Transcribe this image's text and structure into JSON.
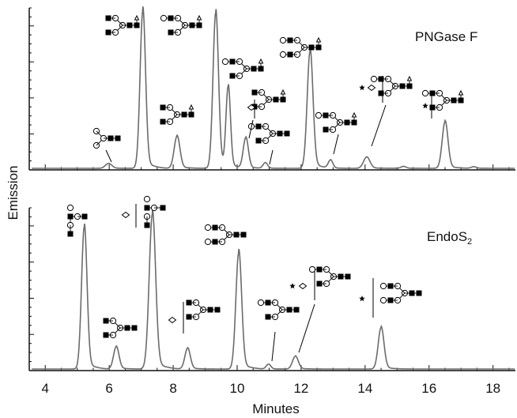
{
  "chart_data": {
    "type": "line",
    "xlabel": "Minutes",
    "ylabel": "Emission",
    "xlim": [
      3.5,
      18.7
    ],
    "x_ticks": [
      "4",
      "6",
      "8",
      "10",
      "12",
      "14",
      "16",
      "18"
    ],
    "grid": false,
    "panels": [
      {
        "label": "PNGase F",
        "label_sub": "",
        "ylim": [
          0,
          1.0
        ],
        "baseline": 0.02,
        "peaks": [
          {
            "time": 5.98,
            "height": 0.03,
            "width": 0.1
          },
          {
            "time": 7.05,
            "height": 0.98,
            "width": 0.085
          },
          {
            "time": 8.12,
            "height": 0.2,
            "width": 0.09
          },
          {
            "time": 9.33,
            "height": 0.97,
            "width": 0.085
          },
          {
            "time": 9.72,
            "height": 0.5,
            "width": 0.07
          },
          {
            "time": 10.27,
            "height": 0.19,
            "width": 0.08
          },
          {
            "time": 10.88,
            "height": 0.035,
            "width": 0.07
          },
          {
            "time": 12.28,
            "height": 0.73,
            "width": 0.09
          },
          {
            "time": 12.92,
            "height": 0.05,
            "width": 0.07
          },
          {
            "time": 14.05,
            "height": 0.07,
            "width": 0.1
          },
          {
            "time": 15.2,
            "height": 0.012,
            "width": 0.08
          },
          {
            "time": 16.5,
            "height": 0.29,
            "width": 0.09
          },
          {
            "time": 17.4,
            "height": 0.01,
            "width": 0.08
          }
        ]
      },
      {
        "label": "EndoS",
        "label_sub": "2",
        "ylim": [
          0,
          1.0
        ],
        "baseline": 0.02,
        "peaks": [
          {
            "time": 5.22,
            "height": 0.89,
            "width": 0.085
          },
          {
            "time": 6.22,
            "height": 0.14,
            "width": 0.085
          },
          {
            "time": 7.35,
            "height": 0.97,
            "width": 0.1
          },
          {
            "time": 8.45,
            "height": 0.13,
            "width": 0.085
          },
          {
            "time": 10.05,
            "height": 0.73,
            "width": 0.09
          },
          {
            "time": 10.98,
            "height": 0.03,
            "width": 0.07
          },
          {
            "time": 11.82,
            "height": 0.08,
            "width": 0.09
          },
          {
            "time": 14.5,
            "height": 0.26,
            "width": 0.09
          }
        ]
      }
    ]
  },
  "colors": {
    "trace": "#6b6b6b",
    "axis": "#111111",
    "glycan_fill": "#000000",
    "glycan_open": "#ffffff"
  },
  "glycan_icon_names": [
    "glcnac-square",
    "mannose-circle",
    "galactose-circle",
    "fucose-diamond",
    "sialic-acid-star",
    "glycan-structure"
  ]
}
